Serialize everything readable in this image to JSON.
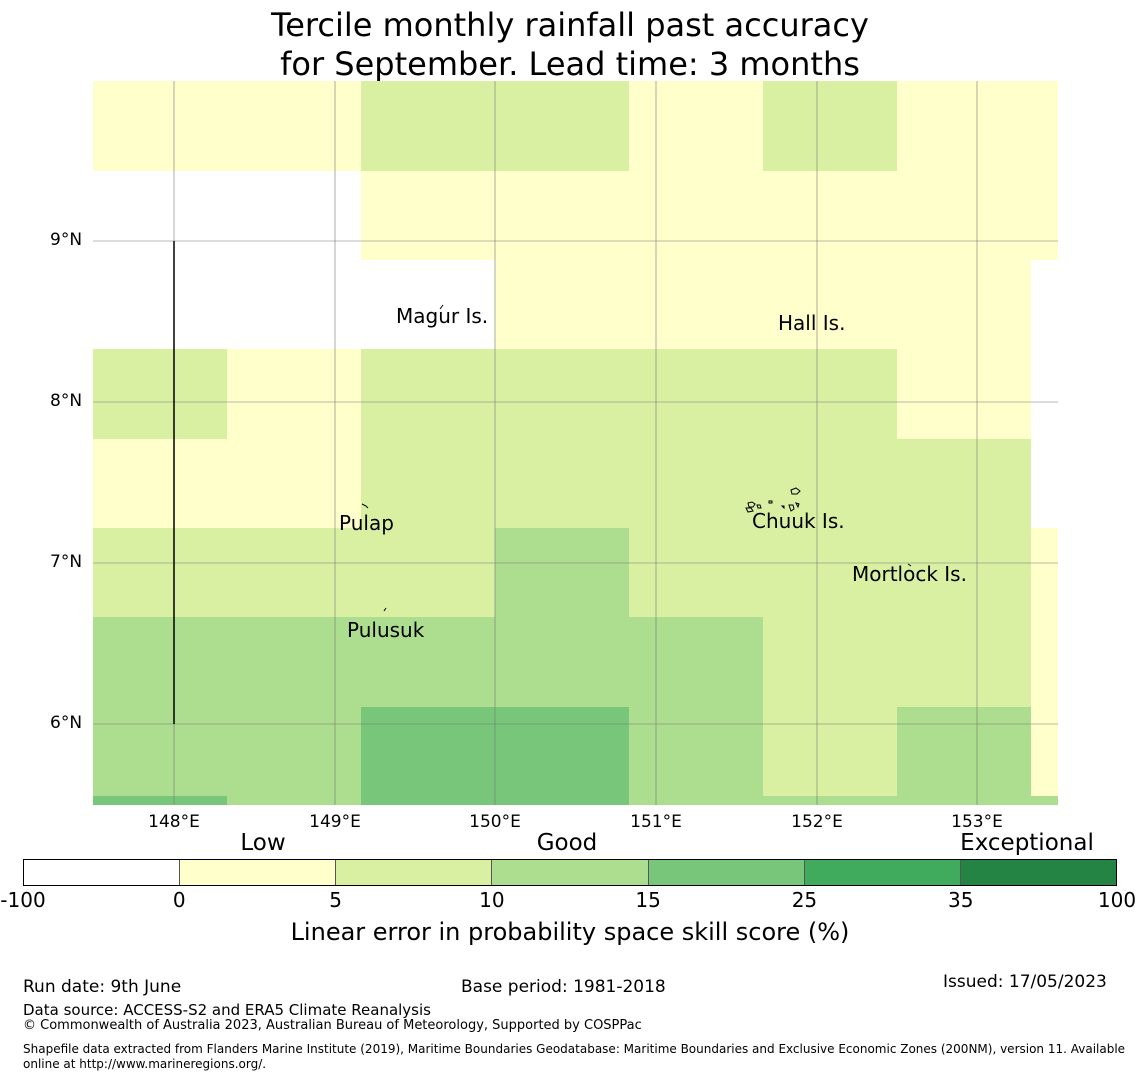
{
  "title": {
    "line1": "Tercile monthly rainfall past accuracy",
    "line2": "for September. Lead time: 3 months"
  },
  "map": {
    "lat_labels": [
      "9°N",
      "8°N",
      "7°N",
      "6°N"
    ],
    "lon_labels": [
      "148°E",
      "149°E",
      "150°E",
      "151°E",
      "152°E",
      "153°E"
    ],
    "places": [
      {
        "id": "magur",
        "name": "Magur Is."
      },
      {
        "id": "hall",
        "name": "Hall Is."
      },
      {
        "id": "pulap",
        "name": "Pulap"
      },
      {
        "id": "chuuk",
        "name": "Chuuk Is."
      },
      {
        "id": "mortlock",
        "name": "Mortlock Is."
      },
      {
        "id": "pulusuk",
        "name": "Pulusuk"
      }
    ]
  },
  "legend": {
    "categories": [
      "Low",
      "Good",
      "Exceptional"
    ],
    "ticks": [
      "-100",
      "0",
      "5",
      "10",
      "15",
      "25",
      "35",
      "100"
    ],
    "colors": [
      "#ffffff",
      "#ffffcc",
      "#d9f0a3",
      "#addd8e",
      "#78c679",
      "#41ab5d",
      "#238443"
    ],
    "label": "Linear error in probability space skill score (%)"
  },
  "footer": {
    "run_date": "Run date: 9th June",
    "base_period": "Base period: 1981-2018",
    "issued": "Issued: 17/05/2023",
    "data_source": "Data source: ACCESS-S2 and ERA5 Climate Reanalysis",
    "copyright": "© Commonwealth of Australia 2023, Australian Bureau of Meteorology, Supported by COSPPac",
    "shapefile": "Shapefile data extracted from Flanders Marine Institute (2019), Maritime Boundaries Geodatabase: Maritime Boundaries and Exclusive Economic Zones (200NM), version 11. Available online at http://www.marineregions.org/."
  }
}
